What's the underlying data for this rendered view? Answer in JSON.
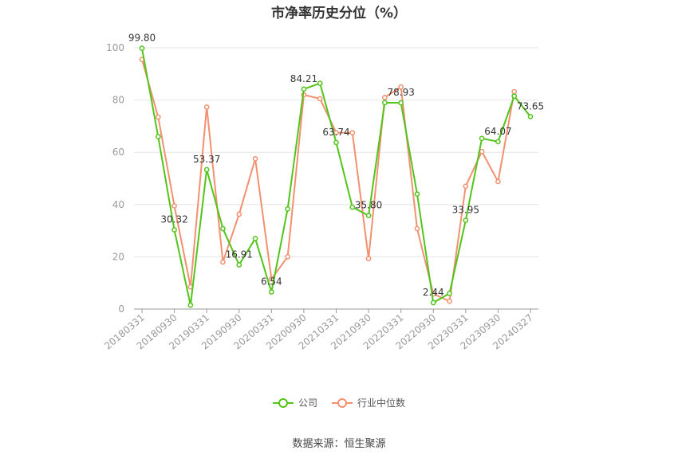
{
  "title": "市净率历史分位（%）",
  "source_text": "数据来源：恒生聚源",
  "colors": {
    "company": "#52c41a",
    "industry": "#f39070",
    "grid": "#e6e6e6",
    "axis": "#999999"
  },
  "chart_data": {
    "type": "line",
    "title": "市净率历史分位（%）",
    "xlabel": "",
    "ylabel": "",
    "ylim": [
      0,
      100
    ],
    "yticks": [
      0,
      20,
      40,
      60,
      80,
      100
    ],
    "grid": true,
    "legend_position": "bottom",
    "x": [
      "20180331",
      "20180630",
      "20180930",
      "20181231",
      "20190331",
      "20190630",
      "20190930",
      "20191231",
      "20200331",
      "20200630",
      "20200930",
      "20201231",
      "20210331",
      "20210630",
      "20210930",
      "20211231",
      "20220331",
      "20220630",
      "20220930",
      "20221231",
      "20230331",
      "20230630",
      "20230930",
      "20231231",
      "20240327"
    ],
    "x_tick_labels": [
      "20180331",
      "20180930",
      "20190331",
      "20190930",
      "20200331",
      "20200930",
      "20210331",
      "20210930",
      "20220331",
      "20220930",
      "20230331",
      "20230930",
      "20240327"
    ],
    "series": [
      {
        "name": "公司",
        "values": [
          99.8,
          66.0,
          30.32,
          1.5,
          53.37,
          30.8,
          16.91,
          27.0,
          6.54,
          38.3,
          84.21,
          86.4,
          63.74,
          39.0,
          35.8,
          79.0,
          78.93,
          44.0,
          2.44,
          6.0,
          33.95,
          65.3,
          64.07,
          81.5,
          73.65
        ],
        "labels": {
          "0": "99.80",
          "2": "30.32",
          "4": "53.37",
          "6": "16.91",
          "8": "6.54",
          "10": "84.21",
          "12": "63.74",
          "14": "35.80",
          "16": "78.93",
          "18": "2.44",
          "20": "33.95",
          "22": "64.07",
          "24": "73.65"
        }
      },
      {
        "name": "行业中位数",
        "values": [
          95.5,
          73.5,
          39.5,
          8.5,
          77.3,
          18.0,
          36.3,
          57.5,
          11.5,
          20.0,
          82.0,
          80.5,
          67.5,
          67.5,
          19.3,
          81.0,
          85.0,
          30.8,
          5.8,
          3.0,
          47.0,
          60.3,
          48.8,
          83.2,
          null
        ]
      }
    ]
  }
}
